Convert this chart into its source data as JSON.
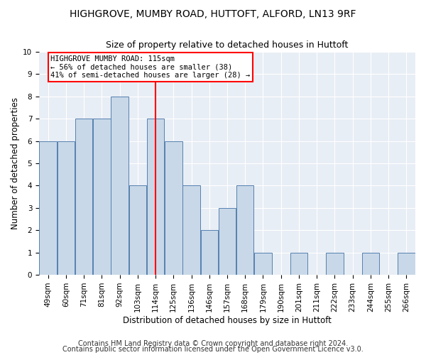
{
  "title1": "HIGHGROVE, MUMBY ROAD, HUTTOFT, ALFORD, LN13 9RF",
  "title2": "Size of property relative to detached houses in Huttoft",
  "xlabel": "Distribution of detached houses by size in Huttoft",
  "ylabel": "Number of detached properties",
  "categories": [
    "49sqm",
    "60sqm",
    "71sqm",
    "81sqm",
    "92sqm",
    "103sqm",
    "114sqm",
    "125sqm",
    "136sqm",
    "146sqm",
    "157sqm",
    "168sqm",
    "179sqm",
    "190sqm",
    "201sqm",
    "211sqm",
    "222sqm",
    "233sqm",
    "244sqm",
    "255sqm",
    "266sqm"
  ],
  "values": [
    6,
    6,
    7,
    7,
    8,
    4,
    7,
    6,
    4,
    2,
    3,
    4,
    1,
    0,
    1,
    0,
    1,
    0,
    1,
    0,
    1
  ],
  "bar_color": "#c8d8e8",
  "bar_edge_color": "#5580b0",
  "vline_x_idx": 6,
  "vline_color": "red",
  "annotation_text": "HIGHGROVE MUMBY ROAD: 115sqm\n← 56% of detached houses are smaller (38)\n41% of semi-detached houses are larger (28) →",
  "annotation_box_color": "white",
  "annotation_box_edge_color": "red",
  "ylim": [
    0,
    10
  ],
  "yticks": [
    0,
    1,
    2,
    3,
    4,
    5,
    6,
    7,
    8,
    9,
    10
  ],
  "footer1": "Contains HM Land Registry data © Crown copyright and database right 2024.",
  "footer2": "Contains public sector information licensed under the Open Government Licence v3.0.",
  "background_color": "#e8eef5",
  "grid_color": "white",
  "title1_fontsize": 10,
  "title2_fontsize": 9,
  "xlabel_fontsize": 8.5,
  "ylabel_fontsize": 8.5,
  "tick_fontsize": 7.5,
  "footer_fontsize": 7,
  "annot_fontsize": 7.5
}
